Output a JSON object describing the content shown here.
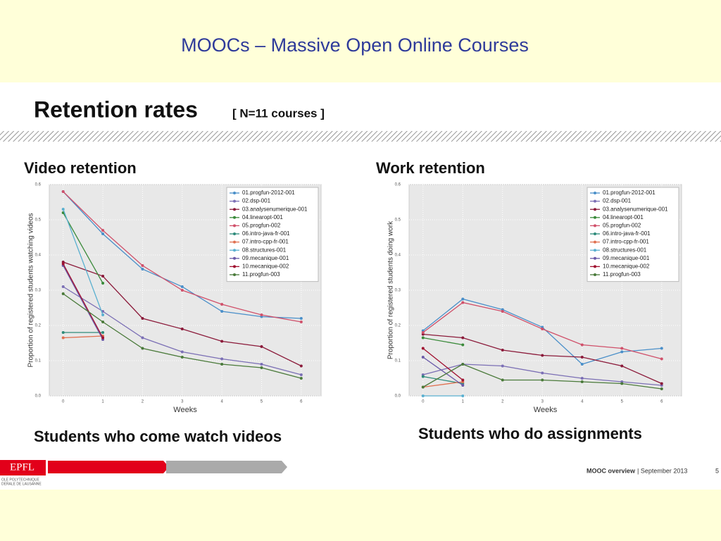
{
  "slide": {
    "title": "MOOCs – Massive Open Online Courses",
    "heading": "Retention rates",
    "subheading": "[ N=11 courses ]",
    "captions": [
      "Students who come watch videos",
      "Students who do assignments"
    ],
    "footer": {
      "bold": "MOOC overview",
      "rest": "| September 2013",
      "page": "5",
      "logo": "EPFL",
      "logo_lines": [
        "OLE POLYTECHNIQUE",
        "DERALE DE LAUSANNE"
      ]
    }
  },
  "chart_data": [
    {
      "type": "line",
      "title": "Video retention",
      "x_label": "Weeks",
      "y_label": "Proportion of registered students watching videos",
      "x": [
        0,
        1,
        2,
        3,
        4,
        5,
        6
      ],
      "xlim": [
        -0.35,
        6.5
      ],
      "xticks": [
        0,
        1,
        2,
        3,
        4,
        5,
        6
      ],
      "ylim": [
        0,
        0.6
      ],
      "yticks": [
        {
          "value": 0,
          "label": "0.0"
        },
        0.1,
        0.2,
        0.3,
        0.4,
        0.5,
        0.6
      ],
      "grid": true,
      "legend": "upper right",
      "series": [
        {
          "name": "01.progfun-2012-001",
          "color": "#4a8fc9",
          "values": [
            0.58,
            0.46,
            0.36,
            0.31,
            0.24,
            0.225,
            0.22
          ]
        },
        {
          "name": "02.dsp-001",
          "color": "#7b6fb5",
          "values": [
            0.31,
            0.24,
            0.165,
            0.125,
            0.105,
            0.09,
            0.06
          ]
        },
        {
          "name": "03.analysenumerique-001",
          "color": "#8b1a3a",
          "values": [
            0.38,
            0.34,
            0.22,
            0.19,
            0.155,
            0.14,
            0.085
          ]
        },
        {
          "name": "04.linearopt-001",
          "color": "#3a8a3a",
          "values": [
            0.52,
            0.32,
            null,
            null,
            null,
            null,
            null
          ]
        },
        {
          "name": "05.progfun-002",
          "color": "#d0506a",
          "values": [
            0.58,
            0.47,
            0.37,
            0.3,
            0.26,
            0.23,
            0.21
          ]
        },
        {
          "name": "06.intro-java-fr-001",
          "color": "#2e8b7a",
          "values": [
            0.18,
            0.18,
            null,
            null,
            null,
            null,
            null
          ]
        },
        {
          "name": "07.intro-cpp-fr-001",
          "color": "#e07050",
          "values": [
            0.165,
            0.17,
            null,
            null,
            null,
            null,
            null
          ]
        },
        {
          "name": "08.structures-001",
          "color": "#5ab0d0",
          "values": [
            0.53,
            0.23,
            null,
            null,
            null,
            null,
            null
          ]
        },
        {
          "name": "09.mecanique-001",
          "color": "#6a5aa8",
          "values": [
            0.37,
            0.16,
            null,
            null,
            null,
            null,
            null
          ]
        },
        {
          "name": "10.mecanique-002",
          "color": "#a01030",
          "values": [
            0.375,
            0.165,
            null,
            null,
            null,
            null,
            null
          ]
        },
        {
          "name": "11.progfun-003",
          "color": "#4a7a3a",
          "values": [
            0.29,
            0.21,
            0.135,
            0.11,
            0.09,
            0.08,
            0.05
          ]
        }
      ]
    },
    {
      "type": "line",
      "title": "Work retention",
      "x_label": "Weeks",
      "y_label": "Proportion of registered students doing work",
      "x": [
        0,
        1,
        2,
        3,
        4,
        5,
        6
      ],
      "xlim": [
        -0.35,
        6.5
      ],
      "xticks": [
        0,
        1,
        2,
        3,
        4,
        5,
        6
      ],
      "ylim": [
        0,
        0.6
      ],
      "yticks": [
        {
          "value": 0,
          "label": "0.0"
        },
        0.1,
        0.2,
        0.3,
        0.4,
        0.5,
        0.6
      ],
      "grid": true,
      "legend": "upper right",
      "series": [
        {
          "name": "01.progfun-2012-001",
          "color": "#4a8fc9",
          "values": [
            0.185,
            0.275,
            0.245,
            0.195,
            0.09,
            0.125,
            0.135
          ]
        },
        {
          "name": "02.dsp-001",
          "color": "#7b6fb5",
          "values": [
            0.06,
            0.09,
            0.085,
            0.065,
            0.05,
            0.04,
            0.03
          ]
        },
        {
          "name": "03.analysenumerique-001",
          "color": "#8b1a3a",
          "values": [
            0.175,
            0.165,
            0.13,
            0.115,
            0.11,
            0.085,
            0.035
          ]
        },
        {
          "name": "04.linearopt-001",
          "color": "#3a8a3a",
          "values": [
            0.165,
            0.145,
            null,
            null,
            null,
            null,
            null
          ]
        },
        {
          "name": "05.progfun-002",
          "color": "#d0506a",
          "values": [
            0.18,
            0.265,
            0.24,
            0.19,
            0.145,
            0.135,
            0.105
          ]
        },
        {
          "name": "06.intro-java-fr-001",
          "color": "#2e8b7a",
          "values": [
            0.055,
            0.035,
            null,
            null,
            null,
            null,
            null
          ]
        },
        {
          "name": "07.intro-cpp-fr-001",
          "color": "#e07050",
          "values": [
            0.025,
            0.04,
            null,
            null,
            null,
            null,
            null
          ]
        },
        {
          "name": "08.structures-001",
          "color": "#5ab0d0",
          "values": [
            0,
            0,
            null,
            null,
            null,
            null,
            null
          ]
        },
        {
          "name": "09.mecanique-001",
          "color": "#6a5aa8",
          "values": [
            0.11,
            0.03,
            null,
            null,
            null,
            null,
            null
          ]
        },
        {
          "name": "10.mecanique-002",
          "color": "#a01030",
          "values": [
            0.135,
            0.045,
            null,
            null,
            null,
            null,
            null
          ]
        },
        {
          "name": "11.progfun-003",
          "color": "#4a7a3a",
          "values": [
            0.025,
            0.09,
            0.045,
            0.045,
            0.04,
            0.035,
            0.02
          ]
        }
      ]
    }
  ]
}
